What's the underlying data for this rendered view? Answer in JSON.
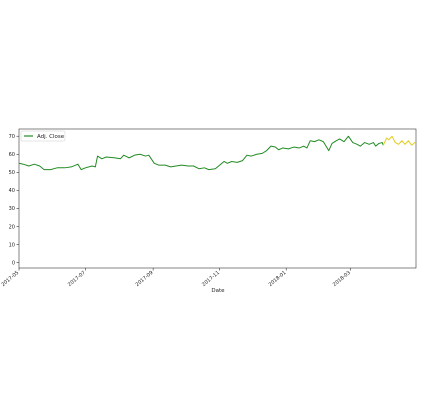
{
  "chart_data": {
    "type": "line",
    "title": "",
    "xlabel": "Date",
    "ylabel": "",
    "xlim": [
      "2017-05-01",
      "2018-04-30"
    ],
    "ylim": [
      -3,
      74
    ],
    "yticks": [
      0,
      10,
      20,
      30,
      40,
      50,
      60,
      70
    ],
    "xticks": [
      {
        "label": "2017-05",
        "date": "2017-05-01"
      },
      {
        "label": "2017-07",
        "date": "2017-07-01"
      },
      {
        "label": "2017-09",
        "date": "2017-09-01"
      },
      {
        "label": "2017-11",
        "date": "2017-11-01"
      },
      {
        "label": "2018-01",
        "date": "2018-01-01"
      },
      {
        "label": "2018-03",
        "date": "2018-03-01"
      }
    ],
    "grid": false,
    "legend": {
      "position": "top-left",
      "entries": [
        "Adj. Close"
      ]
    },
    "series": [
      {
        "name": "Adj. Close",
        "color": "#228B22",
        "points": [
          [
            "2017-05-01",
            55.0
          ],
          [
            "2017-05-05",
            54.5
          ],
          [
            "2017-05-10",
            53.5
          ],
          [
            "2017-05-15",
            54.5
          ],
          [
            "2017-05-20",
            53.5
          ],
          [
            "2017-05-24",
            51.5
          ],
          [
            "2017-05-30",
            51.5
          ],
          [
            "2017-06-05",
            52.5
          ],
          [
            "2017-06-12",
            52.5
          ],
          [
            "2017-06-18",
            53.0
          ],
          [
            "2017-06-24",
            54.5
          ],
          [
            "2017-06-27",
            51.5
          ],
          [
            "2017-07-01",
            52.5
          ],
          [
            "2017-07-07",
            53.5
          ],
          [
            "2017-07-10",
            53.0
          ],
          [
            "2017-07-12",
            59.0
          ],
          [
            "2017-07-16",
            57.5
          ],
          [
            "2017-07-20",
            58.5
          ],
          [
            "2017-07-28",
            58.0
          ],
          [
            "2017-08-02",
            57.5
          ],
          [
            "2017-08-05",
            59.5
          ],
          [
            "2017-08-10",
            58.0
          ],
          [
            "2017-08-15",
            59.5
          ],
          [
            "2017-08-20",
            60.0
          ],
          [
            "2017-08-25",
            59.0
          ],
          [
            "2017-08-28",
            59.5
          ],
          [
            "2017-09-02",
            55.0
          ],
          [
            "2017-09-06",
            54.0
          ],
          [
            "2017-09-12",
            54.0
          ],
          [
            "2017-09-17",
            53.0
          ],
          [
            "2017-09-22",
            53.5
          ],
          [
            "2017-09-27",
            54.0
          ],
          [
            "2017-10-03",
            53.5
          ],
          [
            "2017-10-08",
            53.5
          ],
          [
            "2017-10-13",
            52.0
          ],
          [
            "2017-10-18",
            52.5
          ],
          [
            "2017-10-22",
            51.5
          ],
          [
            "2017-10-28",
            52.0
          ],
          [
            "2017-11-01",
            54.0
          ],
          [
            "2017-11-05",
            56.0
          ],
          [
            "2017-11-08",
            55.0
          ],
          [
            "2017-11-12",
            56.0
          ],
          [
            "2017-11-17",
            55.5
          ],
          [
            "2017-11-22",
            56.5
          ],
          [
            "2017-11-26",
            59.5
          ],
          [
            "2017-11-30",
            59.0
          ],
          [
            "2017-12-05",
            60.0
          ],
          [
            "2017-12-10",
            60.5
          ],
          [
            "2017-12-14",
            62.0
          ],
          [
            "2017-12-18",
            64.5
          ],
          [
            "2017-12-22",
            64.0
          ],
          [
            "2017-12-25",
            62.5
          ],
          [
            "2017-12-29",
            63.5
          ],
          [
            "2018-01-03",
            63.0
          ],
          [
            "2018-01-08",
            64.0
          ],
          [
            "2018-01-13",
            63.5
          ],
          [
            "2018-01-17",
            64.5
          ],
          [
            "2018-01-20",
            63.5
          ],
          [
            "2018-01-23",
            67.5
          ],
          [
            "2018-01-27",
            67.0
          ],
          [
            "2018-01-31",
            68.0
          ],
          [
            "2018-02-04",
            67.0
          ],
          [
            "2018-02-07",
            64.0
          ],
          [
            "2018-02-09",
            62.0
          ],
          [
            "2018-02-12",
            66.0
          ],
          [
            "2018-02-16",
            67.5
          ],
          [
            "2018-02-19",
            68.5
          ],
          [
            "2018-02-23",
            67.0
          ],
          [
            "2018-02-27",
            70.0
          ],
          [
            "2018-03-03",
            66.5
          ],
          [
            "2018-03-07",
            65.5
          ],
          [
            "2018-03-10",
            64.5
          ],
          [
            "2018-03-14",
            66.5
          ],
          [
            "2018-03-18",
            65.5
          ],
          [
            "2018-03-22",
            66.5
          ],
          [
            "2018-03-24",
            64.5
          ],
          [
            "2018-03-27",
            66.0
          ],
          [
            "2018-03-30",
            66.5
          ],
          [
            "2018-03-31",
            65.0
          ]
        ]
      },
      {
        "name": "",
        "color": "#E3CC1F",
        "points": [
          [
            "2018-03-31",
            65.0
          ],
          [
            "2018-04-03",
            69.0
          ],
          [
            "2018-04-05",
            68.0
          ],
          [
            "2018-04-08",
            70.0
          ],
          [
            "2018-04-11",
            66.5
          ],
          [
            "2018-04-14",
            65.5
          ],
          [
            "2018-04-17",
            67.5
          ],
          [
            "2018-04-20",
            65.5
          ],
          [
            "2018-04-23",
            67.5
          ],
          [
            "2018-04-26",
            65.0
          ],
          [
            "2018-04-30",
            67.0
          ]
        ]
      }
    ]
  }
}
